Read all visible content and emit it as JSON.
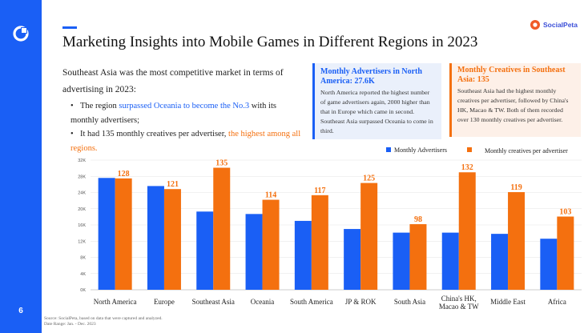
{
  "page": {
    "title": "Marketing Insights into Mobile Games in Different Regions in 2023",
    "number": "6",
    "brand": "SocialPeta"
  },
  "intro": {
    "text": "Southeast Asia was the most competitive market in terms of advertising in 2023:",
    "bullet1": {
      "prefix": "The region ",
      "highlight": "surpassed Oceania to become the No.3",
      "suffix": " with its monthly advertisers;"
    },
    "bullet2": {
      "prefix": "It had 135 monthly creatives per advertiser, ",
      "highlight": "the highest among all regions."
    }
  },
  "cards": {
    "north_america": {
      "title": "Monthly Advertisers in North America: 27.6K",
      "body": "North America reported the highest number of game advertisers again, 2000 higher than that in Europe which came in second. Southeast Asia surpassed Oceania to come in third."
    },
    "southeast_asia": {
      "title": "Monthly Creatives in Southeast Asia: 135",
      "body": "Southeast Asia had the highest monthly creatives per advertiser, followed by China's HK, Macao & TW. Both of them recorded over 130 monthly creatives per advertiser."
    }
  },
  "source": {
    "line1": "Source: SocialPeta, based on data that were captured and analyzed.",
    "line2": "Date Range: Jan. - Dec. 2023"
  },
  "colors": {
    "advertisers": "#1a5ff5",
    "creatives": "#f4700f",
    "accent": "#1a5ff5"
  },
  "chart_data": {
    "type": "bar",
    "categories": [
      "North America",
      "Europe",
      "Southeast Asia",
      "Oceania",
      "South America",
      "JP & ROK",
      "South Asia",
      "China's HK, Macao & TW",
      "Middle East",
      "Africa"
    ],
    "series": [
      {
        "name": "Monthly Advertisers",
        "axis": "left",
        "values": [
          27.6,
          25.6,
          19.3,
          18.7,
          17.0,
          15.0,
          14.1,
          14.1,
          13.8,
          12.6
        ]
      },
      {
        "name": "Monthly creatives per advertiser",
        "axis": "right",
        "values": [
          128,
          121,
          135,
          114,
          117,
          125,
          98,
          132,
          119,
          103
        ],
        "data_labels": [
          "128",
          "121",
          "135",
          "114",
          "117",
          "125",
          "98",
          "132",
          "119",
          "103"
        ]
      }
    ],
    "left_axis": {
      "ticks": [
        "0K",
        "4K",
        "8K",
        "12K",
        "16K",
        "20K",
        "24K",
        "28K",
        "32K"
      ],
      "ylim": [
        0,
        32
      ]
    },
    "right_axis_ylim": [
      55,
      140
    ],
    "legend": "top-right",
    "grid": true
  }
}
